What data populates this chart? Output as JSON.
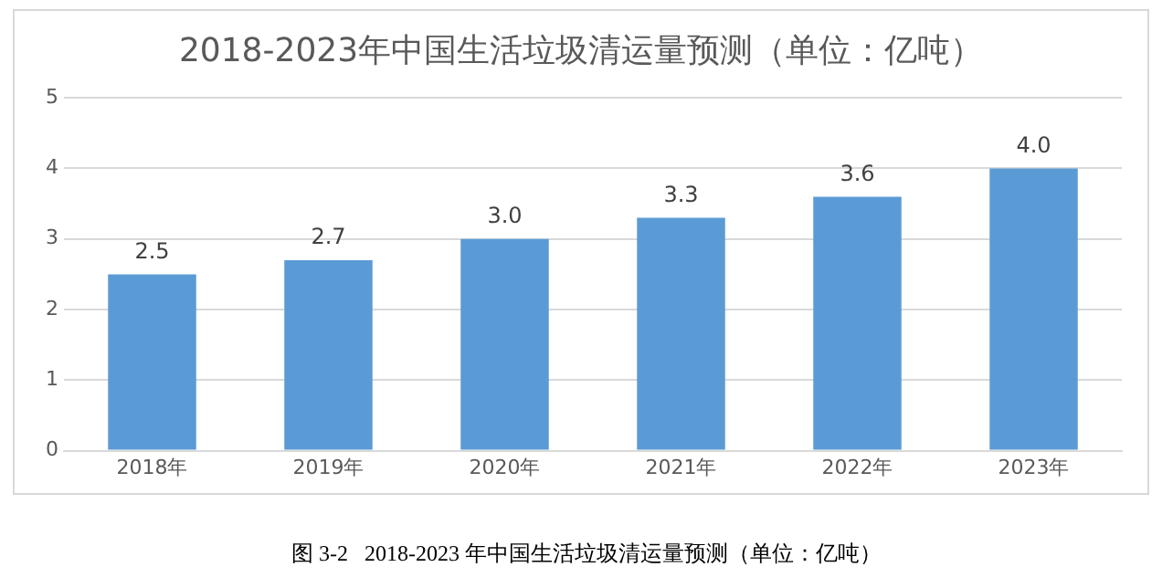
{
  "chart_data": {
    "type": "bar",
    "title": "2018-2023年中国生活垃圾清运量预测（单位：亿吨）",
    "categories": [
      "2018年",
      "2019年",
      "2020年",
      "2021年",
      "2022年",
      "2023年"
    ],
    "values": [
      2.5,
      2.7,
      3.0,
      3.3,
      3.6,
      4.0
    ],
    "value_labels": [
      "2.5",
      "2.7",
      "3.0",
      "3.3",
      "3.6",
      "4.0"
    ],
    "color": "#5b9bd5",
    "ylim": [
      0,
      5
    ],
    "yticks": [
      0,
      1,
      2,
      3,
      4,
      5
    ],
    "grid": "y",
    "annotations": [
      "图 3-2   2018-2023 年中国生活垃圾清运量预测（单位：亿吨）"
    ]
  }
}
